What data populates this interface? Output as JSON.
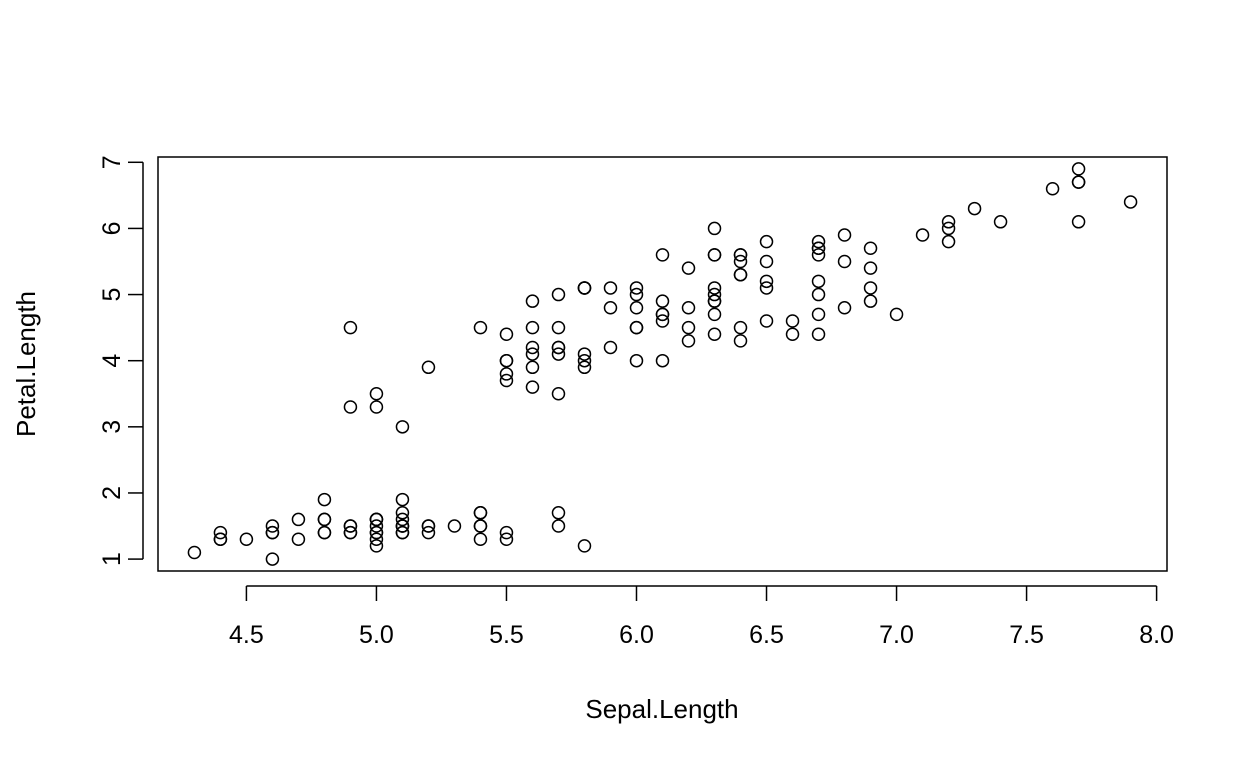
{
  "chart_data": {
    "type": "scatter",
    "title": "",
    "xlabel": "Sepal.Length",
    "ylabel": "Petal.Length",
    "xlim": [
      4.16,
      8.04
    ],
    "ylim": [
      0.82,
      7.08
    ],
    "xticks": [
      4.5,
      5.0,
      5.5,
      6.0,
      6.5,
      7.0,
      7.5,
      8.0
    ],
    "xtick_labels": [
      "4.5",
      "5.0",
      "5.5",
      "6.0",
      "6.5",
      "7.0",
      "7.5",
      "8.0"
    ],
    "yticks": [
      1,
      2,
      3,
      4,
      5,
      6,
      7
    ],
    "ytick_labels": [
      "1",
      "2",
      "3",
      "4",
      "5",
      "6",
      "7"
    ],
    "grid": false,
    "marker": "open-circle",
    "series": [
      {
        "points": [
          [
            5.1,
            1.4
          ],
          [
            4.9,
            1.4
          ],
          [
            4.7,
            1.3
          ],
          [
            4.6,
            1.5
          ],
          [
            5.0,
            1.4
          ],
          [
            5.4,
            1.7
          ],
          [
            4.6,
            1.4
          ],
          [
            5.0,
            1.5
          ],
          [
            4.4,
            1.4
          ],
          [
            4.9,
            1.5
          ],
          [
            5.4,
            1.5
          ],
          [
            4.8,
            1.6
          ],
          [
            4.8,
            1.4
          ],
          [
            4.3,
            1.1
          ],
          [
            5.8,
            1.2
          ],
          [
            5.7,
            1.5
          ],
          [
            5.4,
            1.3
          ],
          [
            5.1,
            1.4
          ],
          [
            5.7,
            1.7
          ],
          [
            5.1,
            1.5
          ],
          [
            5.4,
            1.7
          ],
          [
            5.1,
            1.5
          ],
          [
            4.6,
            1.0
          ],
          [
            5.1,
            1.7
          ],
          [
            4.8,
            1.9
          ],
          [
            5.0,
            1.6
          ],
          [
            5.0,
            1.6
          ],
          [
            5.2,
            1.5
          ],
          [
            5.2,
            1.4
          ],
          [
            4.7,
            1.6
          ],
          [
            4.8,
            1.6
          ],
          [
            5.4,
            1.5
          ],
          [
            5.2,
            1.5
          ],
          [
            5.5,
            1.4
          ],
          [
            4.9,
            1.5
          ],
          [
            5.0,
            1.2
          ],
          [
            5.5,
            1.3
          ],
          [
            4.9,
            1.4
          ],
          [
            4.4,
            1.3
          ],
          [
            5.1,
            1.5
          ],
          [
            5.0,
            1.3
          ],
          [
            4.5,
            1.3
          ],
          [
            4.4,
            1.3
          ],
          [
            5.0,
            1.6
          ],
          [
            5.1,
            1.9
          ],
          [
            4.8,
            1.4
          ],
          [
            5.1,
            1.6
          ],
          [
            4.6,
            1.4
          ],
          [
            5.3,
            1.5
          ],
          [
            5.0,
            1.4
          ],
          [
            7.0,
            4.7
          ],
          [
            6.4,
            4.5
          ],
          [
            6.9,
            4.9
          ],
          [
            5.5,
            4.0
          ],
          [
            6.5,
            4.6
          ],
          [
            5.7,
            4.5
          ],
          [
            6.3,
            4.7
          ],
          [
            4.9,
            3.3
          ],
          [
            6.6,
            4.6
          ],
          [
            5.2,
            3.9
          ],
          [
            5.0,
            3.5
          ],
          [
            5.9,
            4.2
          ],
          [
            6.0,
            4.0
          ],
          [
            6.1,
            4.7
          ],
          [
            5.6,
            3.6
          ],
          [
            6.7,
            4.4
          ],
          [
            5.6,
            4.5
          ],
          [
            5.8,
            4.1
          ],
          [
            6.2,
            4.5
          ],
          [
            5.6,
            3.9
          ],
          [
            5.9,
            4.8
          ],
          [
            6.1,
            4.0
          ],
          [
            6.3,
            4.9
          ],
          [
            6.1,
            4.7
          ],
          [
            6.4,
            4.3
          ],
          [
            6.6,
            4.4
          ],
          [
            6.8,
            4.8
          ],
          [
            6.7,
            5.0
          ],
          [
            6.0,
            4.5
          ],
          [
            5.7,
            3.5
          ],
          [
            5.5,
            3.8
          ],
          [
            5.5,
            3.7
          ],
          [
            5.8,
            3.9
          ],
          [
            6.0,
            5.1
          ],
          [
            5.4,
            4.5
          ],
          [
            6.0,
            4.5
          ],
          [
            6.7,
            4.7
          ],
          [
            6.3,
            4.4
          ],
          [
            5.6,
            4.1
          ],
          [
            5.5,
            4.0
          ],
          [
            5.5,
            4.4
          ],
          [
            6.1,
            4.6
          ],
          [
            5.8,
            4.0
          ],
          [
            5.0,
            3.3
          ],
          [
            5.6,
            4.2
          ],
          [
            5.7,
            4.2
          ],
          [
            5.7,
            4.2
          ],
          [
            6.2,
            4.3
          ],
          [
            5.1,
            3.0
          ],
          [
            5.7,
            4.1
          ],
          [
            6.3,
            6.0
          ],
          [
            5.8,
            5.1
          ],
          [
            7.1,
            5.9
          ],
          [
            6.3,
            5.6
          ],
          [
            6.5,
            5.8
          ],
          [
            7.6,
            6.6
          ],
          [
            4.9,
            4.5
          ],
          [
            7.3,
            6.3
          ],
          [
            6.7,
            5.8
          ],
          [
            7.2,
            6.1
          ],
          [
            6.5,
            5.1
          ],
          [
            6.4,
            5.3
          ],
          [
            6.8,
            5.5
          ],
          [
            5.7,
            5.0
          ],
          [
            5.8,
            5.1
          ],
          [
            6.4,
            5.3
          ],
          [
            6.5,
            5.5
          ],
          [
            7.7,
            6.7
          ],
          [
            7.7,
            6.9
          ],
          [
            6.0,
            5.0
          ],
          [
            6.9,
            5.7
          ],
          [
            5.6,
            4.9
          ],
          [
            7.7,
            6.7
          ],
          [
            6.3,
            4.9
          ],
          [
            6.7,
            5.7
          ],
          [
            7.2,
            6.0
          ],
          [
            6.2,
            4.8
          ],
          [
            6.1,
            4.9
          ],
          [
            6.4,
            5.6
          ],
          [
            7.2,
            5.8
          ],
          [
            7.4,
            6.1
          ],
          [
            7.9,
            6.4
          ],
          [
            6.4,
            5.6
          ],
          [
            6.3,
            5.1
          ],
          [
            6.1,
            5.6
          ],
          [
            7.7,
            6.1
          ],
          [
            6.3,
            5.6
          ],
          [
            6.4,
            5.5
          ],
          [
            6.0,
            4.8
          ],
          [
            6.9,
            5.4
          ],
          [
            6.7,
            5.6
          ],
          [
            6.9,
            5.1
          ],
          [
            5.8,
            5.1
          ],
          [
            6.8,
            5.9
          ],
          [
            6.7,
            5.7
          ],
          [
            6.7,
            5.2
          ],
          [
            6.3,
            5.0
          ],
          [
            6.5,
            5.2
          ],
          [
            6.2,
            5.4
          ],
          [
            5.9,
            5.1
          ]
        ]
      }
    ]
  }
}
